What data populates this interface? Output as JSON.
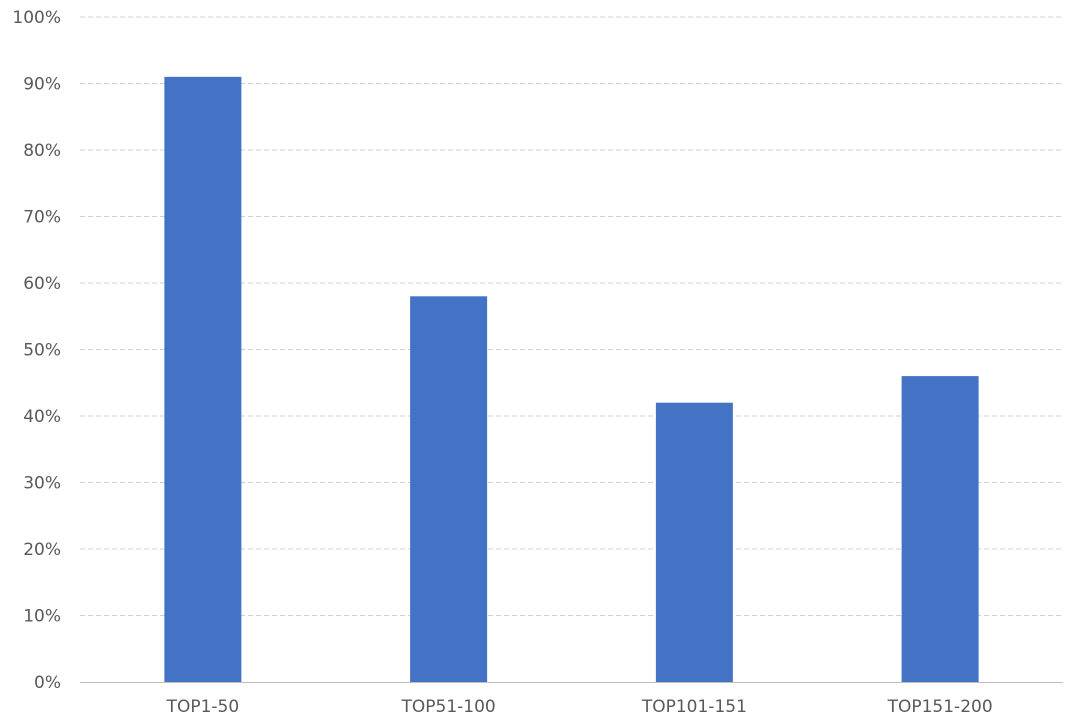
{
  "chart_data": {
    "type": "bar",
    "title": "",
    "xlabel": "",
    "ylabel": "",
    "categories": [
      "TOP1-50",
      "TOP51-100",
      "TOP101-151",
      "TOP151-200"
    ],
    "values": [
      91,
      58,
      42,
      46
    ],
    "ylim": [
      0,
      100
    ],
    "yticks": [
      "0%",
      "10%",
      "20%",
      "30%",
      "40%",
      "50%",
      "60%",
      "70%",
      "80%",
      "90%",
      "100%"
    ],
    "grid": true,
    "grid_style": "dashed",
    "bar_color": "#4472C4",
    "legend": "none"
  }
}
